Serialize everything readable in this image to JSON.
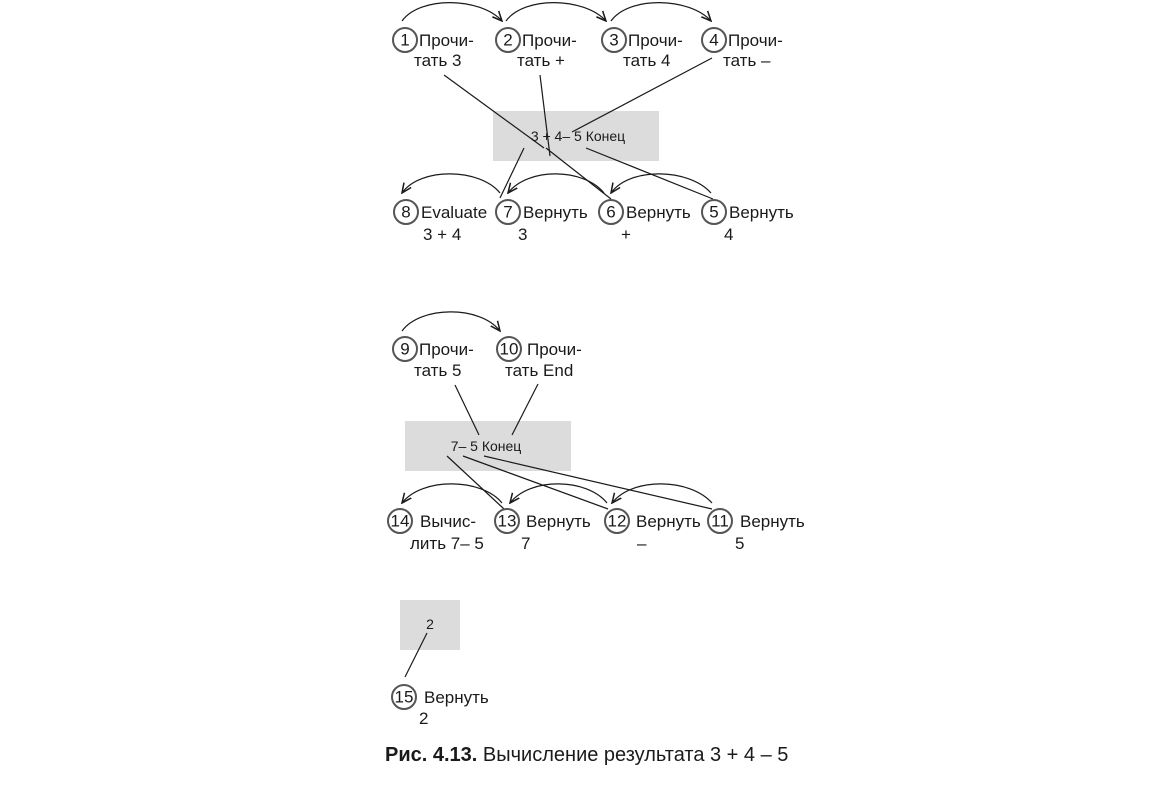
{
  "diagram": {
    "steps": {
      "s1": {
        "num": "1",
        "line1": "Прочи-",
        "line2": "тать 3"
      },
      "s2": {
        "num": "2",
        "line1": "Прочи-",
        "line2": "тать +"
      },
      "s3": {
        "num": "3",
        "line1": "Прочи-",
        "line2": "тать 4"
      },
      "s4": {
        "num": "4",
        "line1": "Прочи-",
        "line2": "тать –"
      },
      "s5": {
        "num": "5",
        "line1": "Вернуть",
        "line2": "4"
      },
      "s6": {
        "num": "6",
        "line1": "Вернуть",
        "line2": "+"
      },
      "s7": {
        "num": "7",
        "line1": "Вернуть",
        "line2": "3"
      },
      "s8": {
        "num": "8",
        "line1": "Evaluate",
        "line2": "3 + 4"
      },
      "s9": {
        "num": "9",
        "line1": "Прочи-",
        "line2": "тать 5"
      },
      "s10": {
        "num": "10",
        "line1": "Прочи-",
        "line2": "тать End"
      },
      "s11": {
        "num": "11",
        "line1": "Вернуть",
        "line2": "5"
      },
      "s12": {
        "num": "12",
        "line1": "Вернуть",
        "line2": "–"
      },
      "s13": {
        "num": "13",
        "line1": "Вернуть",
        "line2": "7"
      },
      "s14": {
        "num": "14",
        "line1": "Вычис-",
        "line2": "лить 7– 5"
      },
      "s15": {
        "num": "15",
        "line1": "Вернуть",
        "line2": "2"
      }
    },
    "boxes": {
      "b1": "3 + 4– 5 Конец",
      "b2": "7– 5 Конец",
      "b3": "2"
    },
    "edges": [
      {
        "from": "s1",
        "to": "s2",
        "type": "arrow"
      },
      {
        "from": "s2",
        "to": "s3",
        "type": "arrow"
      },
      {
        "from": "s3",
        "to": "s4",
        "type": "arrow"
      },
      {
        "from": "s5",
        "to": "s6",
        "type": "arrow"
      },
      {
        "from": "s6",
        "to": "s7",
        "type": "arrow"
      },
      {
        "from": "s7",
        "to": "s8",
        "type": "arrow"
      },
      {
        "from": "s9",
        "to": "s10",
        "type": "arrow"
      },
      {
        "from": "s11",
        "to": "s12",
        "type": "arrow"
      },
      {
        "from": "s12",
        "to": "s13",
        "type": "arrow"
      },
      {
        "from": "s13",
        "to": "s14",
        "type": "arrow"
      },
      {
        "from": "s1",
        "to": "b1",
        "type": "line"
      },
      {
        "from": "s2",
        "to": "b1",
        "type": "line"
      },
      {
        "from": "s4",
        "to": "b1",
        "type": "line"
      },
      {
        "from": "b1",
        "to": "s5",
        "type": "line"
      },
      {
        "from": "b1",
        "to": "s6",
        "type": "line"
      },
      {
        "from": "b1",
        "to": "s7",
        "type": "line"
      },
      {
        "from": "s9",
        "to": "b2",
        "type": "line"
      },
      {
        "from": "s10",
        "to": "b2",
        "type": "line"
      },
      {
        "from": "b2",
        "to": "s11",
        "type": "line"
      },
      {
        "from": "b2",
        "to": "s12",
        "type": "line"
      },
      {
        "from": "b2",
        "to": "s13",
        "type": "line"
      },
      {
        "from": "b3",
        "to": "s15",
        "type": "line"
      }
    ]
  },
  "caption": {
    "label": "Рис. 4.13.",
    "text": "Вычисление результата 3 + 4 – 5"
  }
}
